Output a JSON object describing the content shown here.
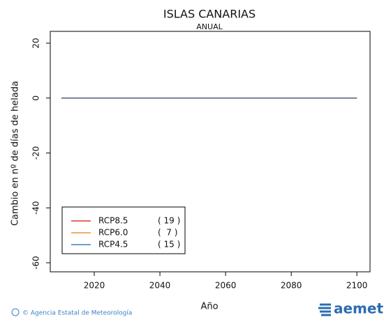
{
  "chart_data": {
    "type": "line",
    "title": "ISLAS CANARIAS",
    "subtitle": "ANUAL",
    "y_label": "Cambio en nº de días de helada",
    "x_label": "Año",
    "x": [
      2010,
      2100
    ],
    "series": [
      {
        "name": "RCP8.5",
        "count_label": "( 19 )",
        "color": "#e03a2f",
        "values": [
          0,
          0
        ]
      },
      {
        "name": "RCP6.0",
        "count_label": "(  7 )",
        "color": "#f0913a",
        "values": [
          0,
          0
        ]
      },
      {
        "name": "RCP4.5",
        "count_label": "( 15 )",
        "color": "#3b7fc4",
        "values": [
          0,
          0
        ]
      }
    ],
    "xlim": [
      2006.6,
      2104
    ],
    "xticks": [
      2020,
      2040,
      2060,
      2080,
      2100
    ],
    "ylim": [
      -63.3,
      24.3
    ],
    "yticks": [
      20,
      0,
      -20,
      -40,
      -60
    ],
    "grid": false,
    "legend": "lower-left",
    "source": "© Agencia Estatal de Meteorología",
    "logo": "aemet"
  }
}
